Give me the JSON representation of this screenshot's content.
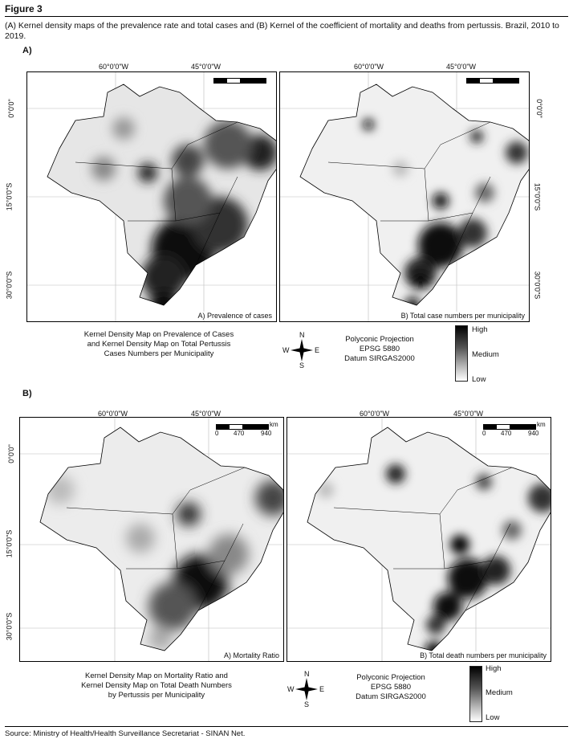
{
  "figure": {
    "title": "Figure 3",
    "caption": "(A) Kernel density maps of the prevalence rate and total cases and (B) Kernel of the coefficient of mortality and deaths from pertussis. Brazil, 2010 to 2019.",
    "source": "Source: Ministry of Health/Health Surveillance Secretariat - SINAN Net."
  },
  "sectionA": {
    "label": "A)",
    "coords": {
      "lon1": "60°0'0\"W",
      "lon2": "45°0'0\"W",
      "lat0": "0°0'0\"",
      "lat15": "15°0'0\"S",
      "lat30": "30°0'0\"S"
    },
    "maps": [
      {
        "label": "A) Prevalence of cases"
      },
      {
        "label": "B) Total case numbers per municipality"
      }
    ],
    "description": [
      "Kernel Density Map on Prevalence of Cases",
      "and Kernel Density Map on Total Pertussis",
      "Cases Numbers per Municipality"
    ],
    "projection": [
      "Polyconic Projection",
      "EPSG 5880",
      "Datum SIRGAS2000"
    ],
    "legend": {
      "high": "High",
      "medium": "Medium",
      "low": "Low"
    },
    "compass": {
      "n": "N",
      "s": "S",
      "e": "E",
      "w": "W"
    }
  },
  "sectionB": {
    "label": "B)",
    "coords": {
      "lon1": "60°0'0\"W",
      "lon2": "45°0'0\"W",
      "lat0": "0°0'0\"",
      "lat15": "15°0'0\"S",
      "lat30": "30°0'0\"S"
    },
    "scale": {
      "unit": "km",
      "ticks": [
        "0",
        "470",
        "940"
      ]
    },
    "maps": [
      {
        "label": "A) Mortality Ratio"
      },
      {
        "label": "B) Total death numbers per municipality"
      }
    ],
    "description": [
      "Kernel Density Map on Mortality Ratio and",
      "Kernel Density Map on Total Death Numbers",
      "by Pertussis per Municipality"
    ],
    "projection": [
      "Polyconic Projection",
      "EPSG 5880",
      "Datum SIRGAS2000"
    ],
    "legend": {
      "high": "High",
      "medium": "Medium",
      "low": "Low"
    },
    "compass": {
      "n": "N",
      "s": "S",
      "e": "E",
      "w": "W"
    }
  }
}
